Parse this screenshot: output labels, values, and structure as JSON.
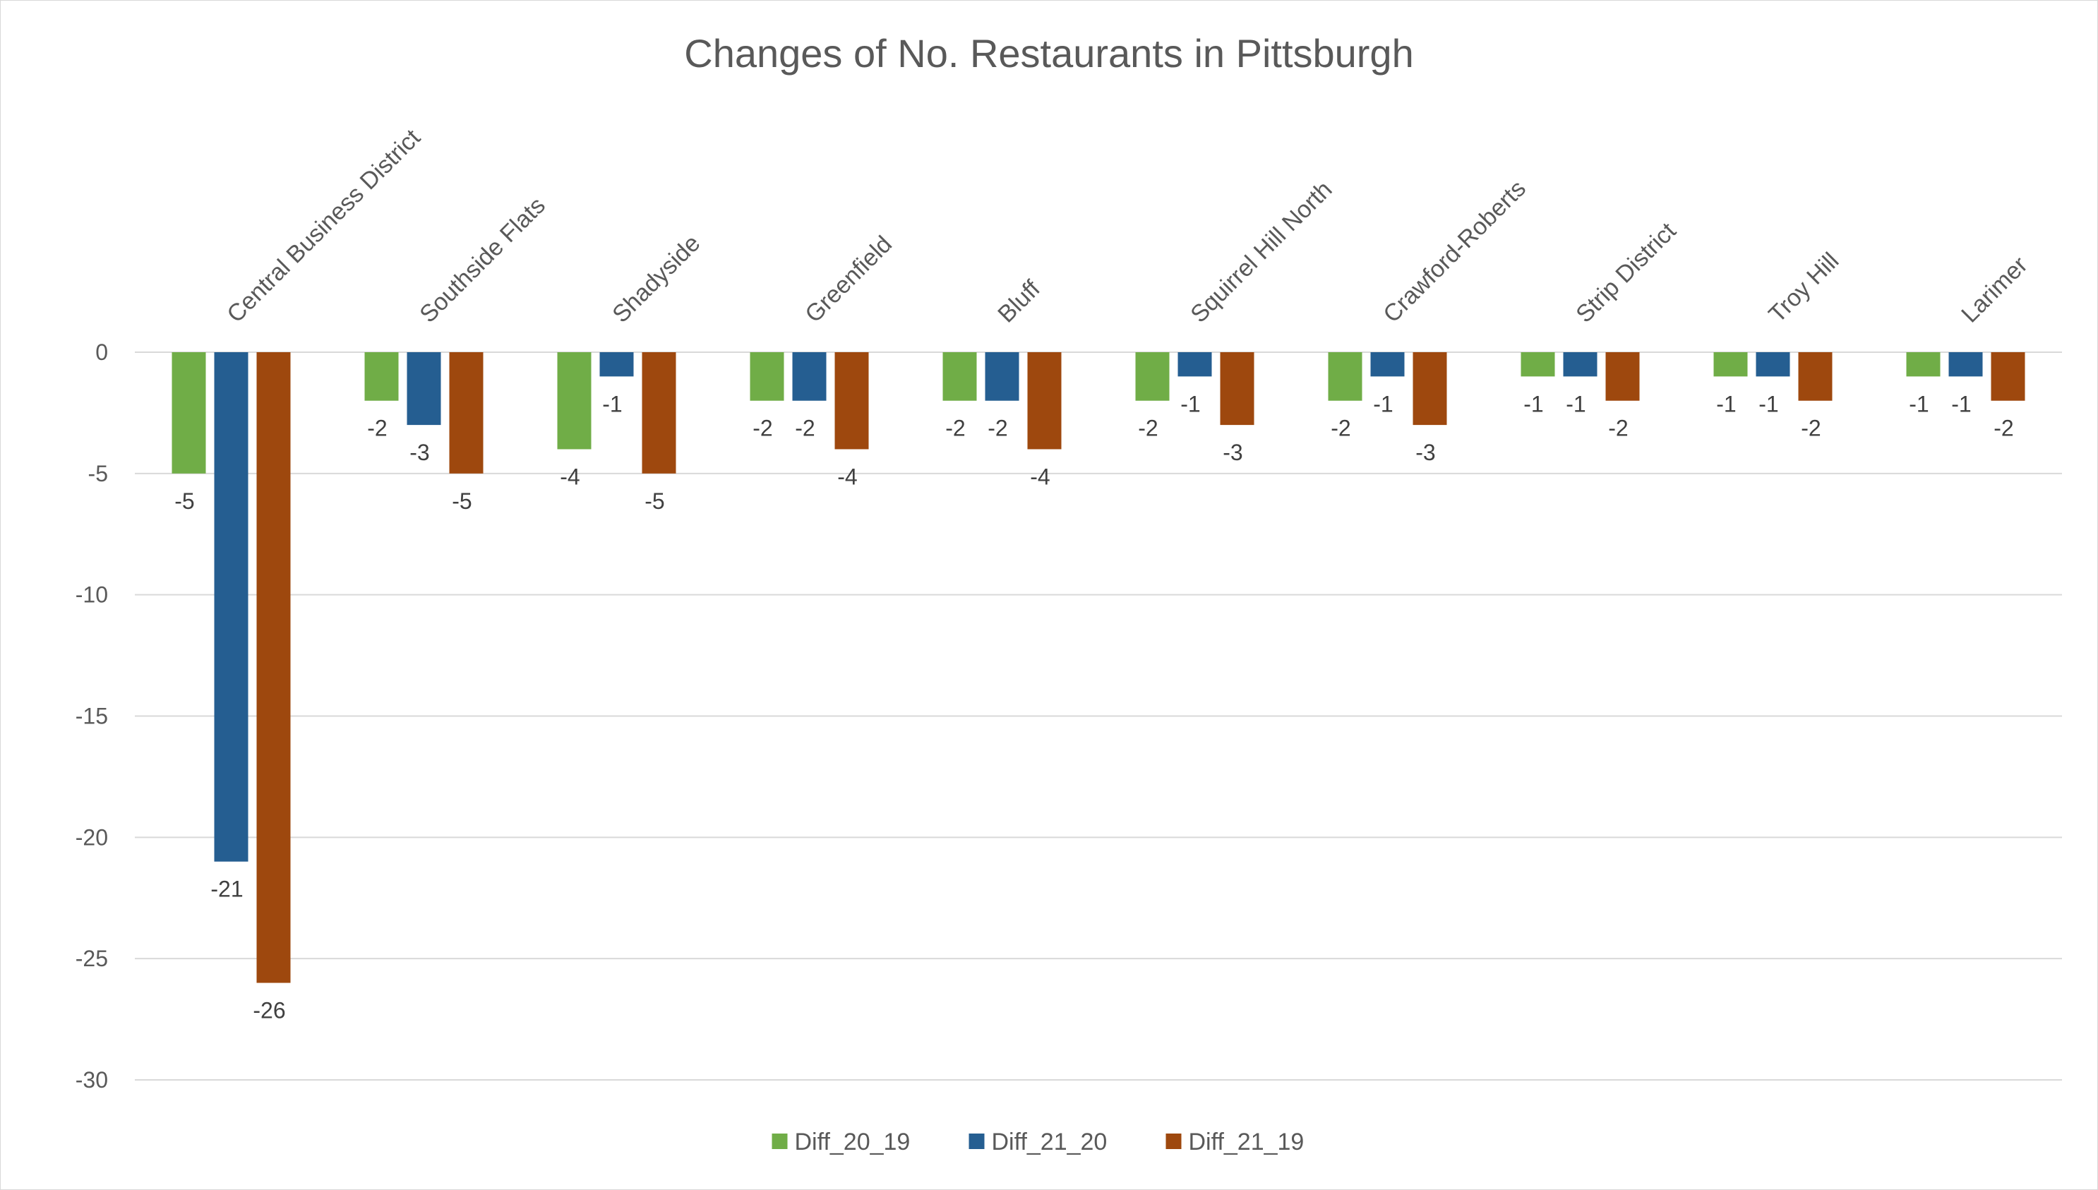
{
  "chart_data": {
    "type": "bar",
    "title": "Changes of No. Restaurants in Pittsburgh",
    "categories": [
      "Central Business District",
      "Southside Flats",
      "Shadyside",
      "Greenfield",
      "Bluff",
      "Squirrel Hill North",
      "Crawford-Roberts",
      "Strip District",
      "Troy Hill",
      "Larimer"
    ],
    "series": [
      {
        "name": "Diff_20_19",
        "color": "#70ad47",
        "values": [
          -5,
          -2,
          -4,
          -2,
          -2,
          -2,
          -2,
          -1,
          -1,
          -1
        ]
      },
      {
        "name": "Diff_21_20",
        "color": "#255e91",
        "values": [
          -21,
          -3,
          -1,
          -2,
          -2,
          -1,
          -1,
          -1,
          -1,
          -1
        ]
      },
      {
        "name": "Diff_21_19",
        "color": "#9e480e",
        "values": [
          -26,
          -5,
          -5,
          -4,
          -4,
          -3,
          -3,
          -2,
          -2,
          -2
        ]
      }
    ],
    "ylim": [
      -30,
      0
    ],
    "yticks": [
      0,
      -5,
      -10,
      -15,
      -20,
      -25,
      -30
    ],
    "grid": true,
    "legend_position": "bottom",
    "data_labels": true,
    "category_labels_position": "top, rotated"
  }
}
